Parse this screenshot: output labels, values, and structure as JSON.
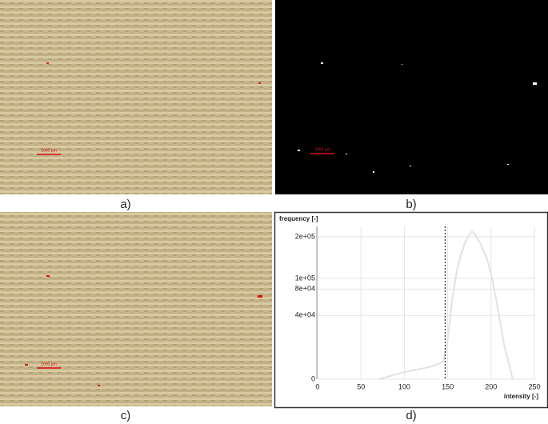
{
  "panels": [
    {
      "caption": "a)",
      "scale_bar": "2000 µm"
    },
    {
      "caption": "b)",
      "scale_bar": "2000 µm"
    },
    {
      "caption": "c)",
      "scale_bar": "2000 µm"
    },
    {
      "caption": "d)"
    }
  ],
  "chart_data": {
    "type": "line",
    "x_label": "intensity [-]",
    "y_label": "frequency [-]",
    "x": [
      70,
      100,
      130,
      145,
      150,
      155,
      160,
      165,
      170,
      175,
      178,
      182,
      188,
      195,
      200,
      205,
      210,
      215,
      220,
      225
    ],
    "series": [
      {
        "color": "#e2e2e2",
        "values": [
          0,
          500,
          1500,
          3000,
          15000,
          60000,
          110000,
          150000,
          185000,
          205000,
          215000,
          205000,
          180000,
          145000,
          110000,
          70000,
          35000,
          12000,
          3000,
          0
        ]
      }
    ],
    "threshold": 147,
    "xlim": [
      0,
      250
    ],
    "xticks": [
      0,
      50,
      100,
      150,
      200,
      250
    ],
    "ylim": [
      0,
      230000
    ],
    "yscale": "sqrt",
    "yticks": [
      0,
      {
        "value": 40000,
        "label": "4e+04"
      },
      {
        "value": 80000,
        "label": "8e+04"
      },
      {
        "value": 100000,
        "label": "1e+05"
      },
      {
        "value": 200000,
        "label": "2e+05"
      }
    ],
    "grid": true
  }
}
